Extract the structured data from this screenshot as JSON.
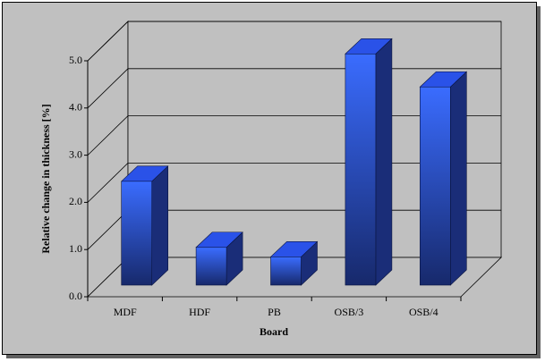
{
  "chart_data": {
    "type": "bar3d",
    "y_label": "Relative change in thickness [%]",
    "x_label": "Board",
    "categories": [
      "MDF",
      "HDF",
      "PB",
      "OSB/3",
      "OSB/4"
    ],
    "values": [
      2.2,
      0.8,
      0.6,
      4.9,
      4.2
    ],
    "color": "#3366ff",
    "ylim": [
      0,
      5
    ],
    "yticks": [
      {
        "value": 0,
        "label": "0.0"
      },
      {
        "value": 1,
        "label": "1.0"
      },
      {
        "value": 2,
        "label": "2.0"
      },
      {
        "value": 3,
        "label": "3.0"
      },
      {
        "value": 4,
        "label": "4.0"
      },
      {
        "value": 5,
        "label": "5.0"
      }
    ],
    "grid": true
  }
}
